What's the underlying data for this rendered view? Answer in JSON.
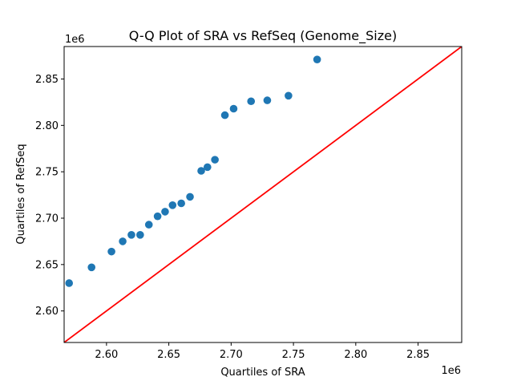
{
  "chart_data": {
    "type": "scatter",
    "title": "Q-Q Plot of SRA vs RefSeq (Genome_Size)",
    "xlabel": "Quartiles of SRA",
    "ylabel": "Quartiles of RefSeq",
    "x_offset_text": "1e6",
    "y_offset_text": "1e6",
    "xlim": [
      2.566,
      2.885
    ],
    "ylim": [
      2.566,
      2.885
    ],
    "x_ticks": [
      2.6,
      2.65,
      2.7,
      2.75,
      2.8,
      2.85
    ],
    "y_ticks": [
      2.6,
      2.65,
      2.7,
      2.75,
      2.8,
      2.85
    ],
    "x_tick_labels": [
      "2.60",
      "2.65",
      "2.70",
      "2.75",
      "2.80",
      "2.85"
    ],
    "y_tick_labels": [
      "2.60",
      "2.65",
      "2.70",
      "2.75",
      "2.80",
      "2.85"
    ],
    "grid": false,
    "marker_color": "#1f77b4",
    "reference_line_color": "#ff0000",
    "reference_line": {
      "x": [
        2.566,
        2.885
      ],
      "y": [
        2.566,
        2.885
      ]
    },
    "points": [
      {
        "x": 2.57,
        "y": 2.63
      },
      {
        "x": 2.588,
        "y": 2.647
      },
      {
        "x": 2.604,
        "y": 2.664
      },
      {
        "x": 2.613,
        "y": 2.675
      },
      {
        "x": 2.62,
        "y": 2.682
      },
      {
        "x": 2.627,
        "y": 2.682
      },
      {
        "x": 2.634,
        "y": 2.693
      },
      {
        "x": 2.641,
        "y": 2.702
      },
      {
        "x": 2.647,
        "y": 2.707
      },
      {
        "x": 2.653,
        "y": 2.714
      },
      {
        "x": 2.66,
        "y": 2.716
      },
      {
        "x": 2.667,
        "y": 2.723
      },
      {
        "x": 2.676,
        "y": 2.751
      },
      {
        "x": 2.681,
        "y": 2.755
      },
      {
        "x": 2.687,
        "y": 2.763
      },
      {
        "x": 2.695,
        "y": 2.811
      },
      {
        "x": 2.702,
        "y": 2.818
      },
      {
        "x": 2.716,
        "y": 2.826
      },
      {
        "x": 2.729,
        "y": 2.827
      },
      {
        "x": 2.746,
        "y": 2.832
      },
      {
        "x": 2.769,
        "y": 2.871
      }
    ]
  }
}
